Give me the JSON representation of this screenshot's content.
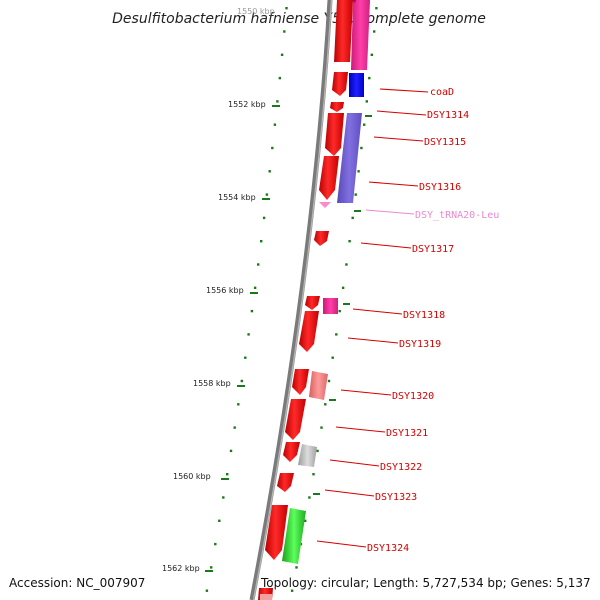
{
  "title": "Desulfitobacterium hafniense Y51, complete genome",
  "footer": {
    "accession": "Accession: NC_007907",
    "topology": "Topology: circular; Length: 5,727,534 bp; Genes: 5,137"
  },
  "kbp_labels": [
    {
      "text": "1550 kbp",
      "faded": true
    },
    {
      "text": "1552 kbp"
    },
    {
      "text": "1554 kbp"
    },
    {
      "text": "1556 kbp"
    },
    {
      "text": "1558 kbp"
    },
    {
      "text": "1560 kbp"
    },
    {
      "text": "1562 kbp"
    }
  ],
  "genes": [
    {
      "name": "coaD"
    },
    {
      "name": "DSY1314"
    },
    {
      "name": "DSY1315"
    },
    {
      "name": "DSY1316"
    },
    {
      "name": "DSY_tRNA20-Leu",
      "type": "trna"
    },
    {
      "name": "DSY1317"
    },
    {
      "name": "DSY1318"
    },
    {
      "name": "DSY1319"
    },
    {
      "name": "DSY1320"
    },
    {
      "name": "DSY1321"
    },
    {
      "name": "DSY1322"
    },
    {
      "name": "DSY1323"
    },
    {
      "name": "DSY1324"
    }
  ],
  "colors": {
    "cds": "#ff0000",
    "trna": "#ff88cc",
    "backbone": "#808080",
    "tick": "#1a7a1a",
    "label": "#d40000"
  }
}
